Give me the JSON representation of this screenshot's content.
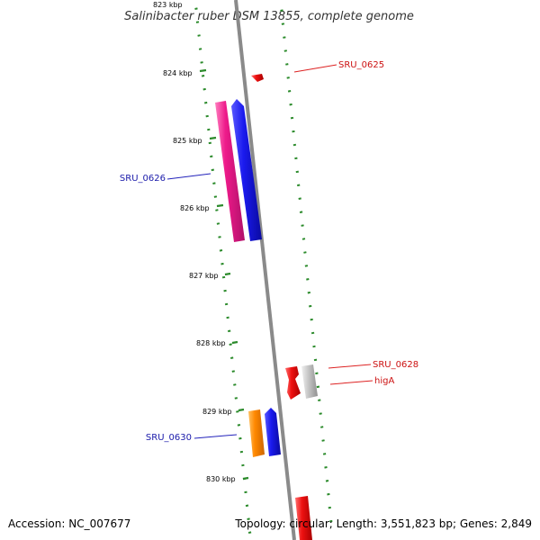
{
  "title": "Salinibacter ruber DSM 13855, complete genome",
  "footer": {
    "accession": "Accession: NC_007677",
    "summary": "Topology: circular; Length: 3,551,823 bp; Genes: 2,849"
  },
  "ticks": [
    "823 kbp",
    "824 kbp",
    "825 kbp",
    "826 kbp",
    "827 kbp",
    "828 kbp",
    "829 kbp",
    "830 kbp"
  ],
  "genes": {
    "forward": [
      {
        "label": "SRU_0625",
        "color": "#ee1111"
      },
      {
        "label": "SRU_0628",
        "color": "#ee1111"
      },
      {
        "label": "higA",
        "color": "#ee1111"
      }
    ],
    "reverse": [
      {
        "label": "SRU_0626",
        "color": "#1a1acc"
      },
      {
        "label": "SRU_0630",
        "color": "#1a1acc"
      }
    ]
  },
  "colors": {
    "backbone": "#8a8a8a",
    "tick": "#2a8a2a",
    "red": "#ee1111",
    "blue": "#1a1aee",
    "magenta": "#ee1a8a",
    "orange": "#ff8800",
    "gray": "#c8c8c8"
  }
}
